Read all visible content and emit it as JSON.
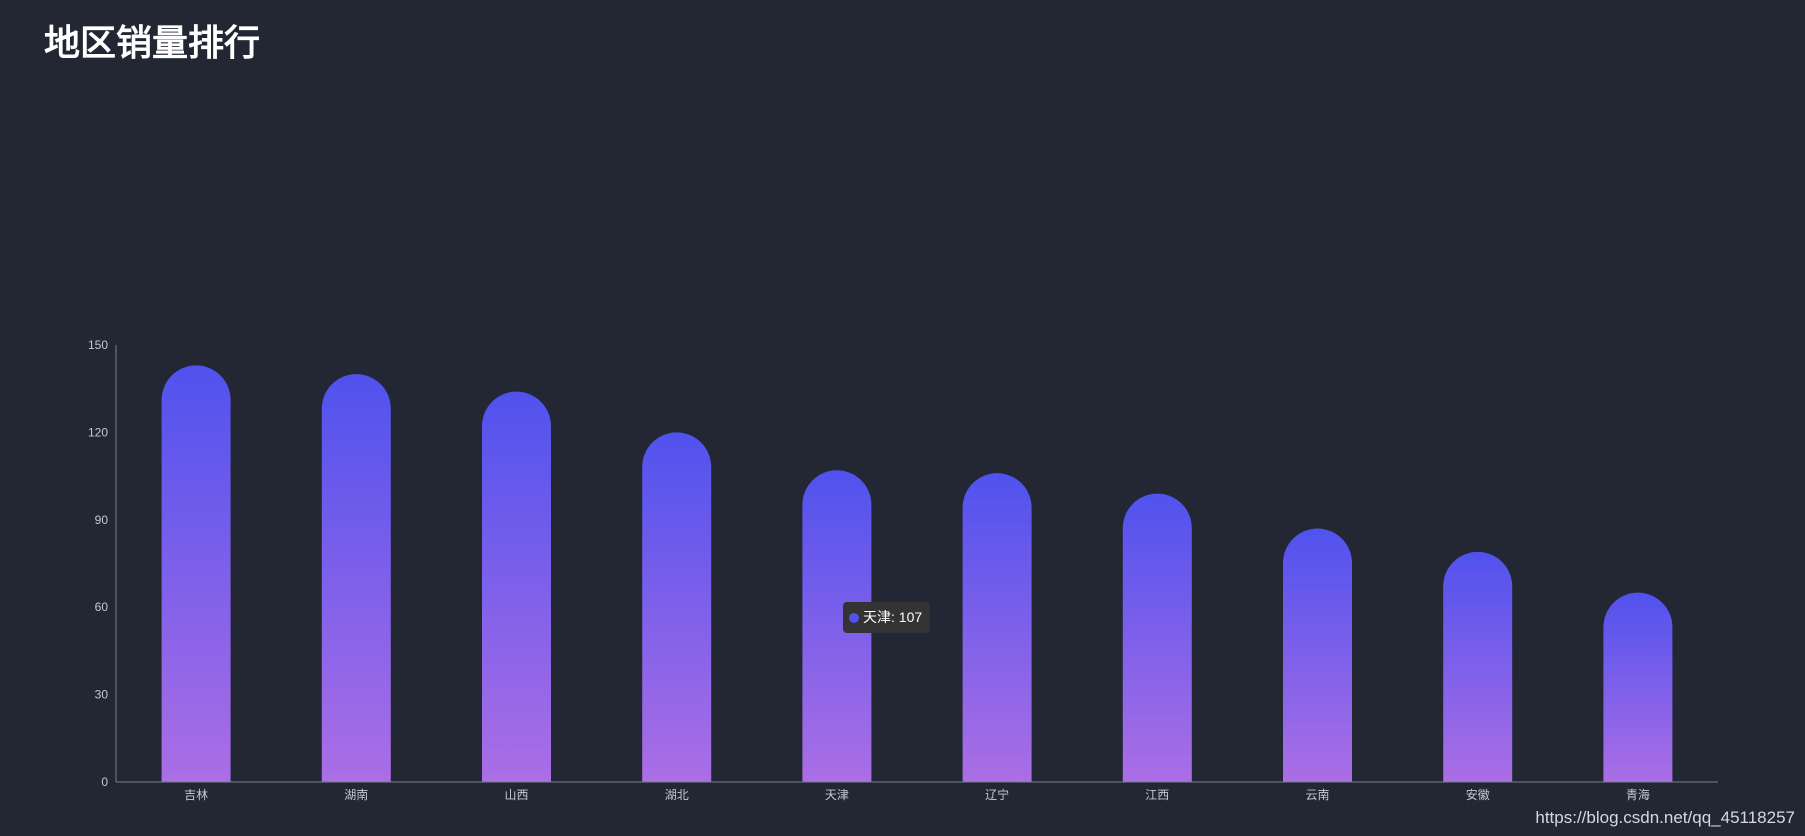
{
  "title": "地区销量排行",
  "colors": {
    "background": "#222733",
    "bar_top": "#5052ee",
    "bar_bottom": "#ab6ee5",
    "axis": "#7a7f8c",
    "tick_label": "#c7c9d1",
    "tooltip_bg": "#333333",
    "tooltip_dot": "#5052ee"
  },
  "chart_data": {
    "type": "bar",
    "categories": [
      "吉林",
      "湖南",
      "山西",
      "湖北",
      "天津",
      "辽宁",
      "江西",
      "云南",
      "安徽",
      "青海"
    ],
    "values": [
      143,
      140,
      134,
      120,
      107,
      106,
      99,
      87,
      79,
      65
    ],
    "ylim": [
      0,
      150
    ],
    "yticks": [
      0,
      30,
      60,
      90,
      120,
      150
    ],
    "grid": false,
    "bar_style": "rounded-top capsule with vertical gradient"
  },
  "tooltip": {
    "category": "天津",
    "value": 107,
    "text": "天津: 107"
  },
  "watermark": "https://blog.csdn.net/qq_45118257"
}
